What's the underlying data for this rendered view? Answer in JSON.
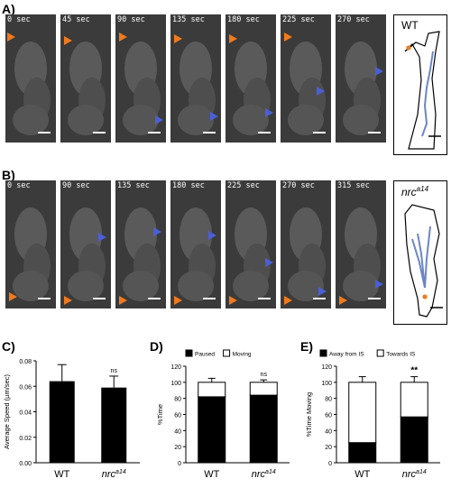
{
  "panels": {
    "A": "A)",
    "B": "B)",
    "C": "C)",
    "D": "D)",
    "E": "E)"
  },
  "row_a": {
    "times": [
      "0 sec",
      "45 sec",
      "90 sec",
      "135 sec",
      "180 sec",
      "225 sec",
      "270 sec"
    ],
    "trace_label": "WT"
  },
  "row_b": {
    "times": [
      "0 sec",
      "90 sec",
      "135 sec",
      "180 sec",
      "225 sec",
      "270 sec",
      "315 sec"
    ],
    "trace_label_main": "nrc",
    "trace_label_sup": "a14"
  },
  "colors": {
    "orange": "#f07a1e",
    "blue": "#4a5fd6",
    "trace_blue": "#6b86c6"
  },
  "chart_data": [
    {
      "type": "bar",
      "panel": "C)",
      "categories": [
        "WT",
        "nrc"
      ],
      "category_sup": [
        "",
        "a14"
      ],
      "values": [
        0.064,
        0.059
      ],
      "errors": [
        0.013,
        0.009
      ],
      "significance": [
        "",
        "ns"
      ],
      "ylabel": "Average Speed (µm/sec)",
      "ylim": [
        0,
        0.08
      ],
      "yticks": [
        "0.00",
        "0.02",
        "0.04",
        "0.06",
        "0.08"
      ]
    },
    {
      "type": "bar",
      "panel": "D)",
      "stacked": true,
      "categories": [
        "WT",
        "nrc"
      ],
      "category_sup": [
        "",
        "a14"
      ],
      "series": [
        {
          "name": "Paused",
          "values": [
            82,
            84
          ],
          "errors": [
            5,
            3
          ],
          "color": "#000000"
        },
        {
          "name": "Moving",
          "values": [
            18,
            16
          ],
          "errors": [
            5,
            3
          ],
          "color": "#ffffff"
        }
      ],
      "significance": [
        "",
        "ns"
      ],
      "ylabel": "%Time",
      "ylim": [
        0,
        120
      ],
      "yticks": [
        "0",
        "20",
        "40",
        "60",
        "80",
        "100",
        "120"
      ]
    },
    {
      "type": "bar",
      "panel": "E)",
      "stacked": true,
      "categories": [
        "WT",
        "nrc"
      ],
      "category_sup": [
        "",
        "a14"
      ],
      "series": [
        {
          "name": "Away from IS",
          "values": [
            25,
            57
          ],
          "errors": [
            5,
            5
          ],
          "color": "#000000"
        },
        {
          "name": "Towards IS",
          "values": [
            75,
            43
          ],
          "errors": [
            7,
            7
          ],
          "color": "#ffffff"
        }
      ],
      "significance": [
        "",
        "**"
      ],
      "ylabel": "%Time Moving",
      "ylim": [
        0,
        120
      ],
      "yticks": [
        "0",
        "20",
        "40",
        "60",
        "80",
        "100",
        "120"
      ]
    }
  ]
}
